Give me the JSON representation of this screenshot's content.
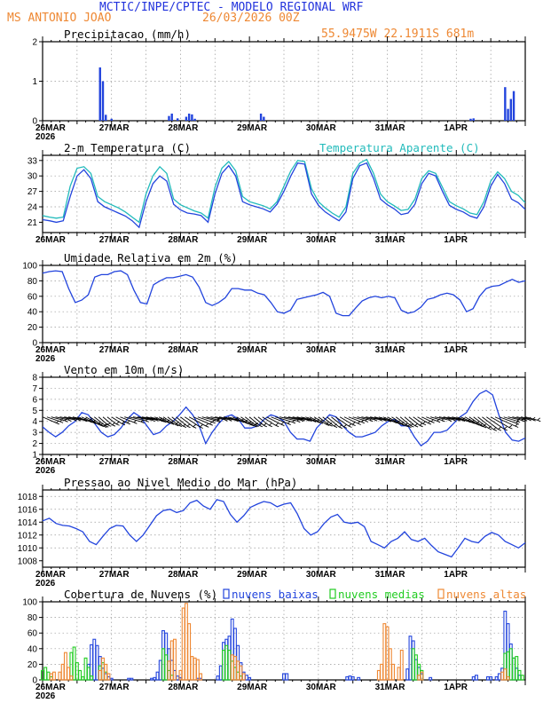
{
  "header": {
    "title": "MCTIC/INPE/CPTEC - MODELO REGIONAL WRF",
    "station": "MS ANTONIO JOAO",
    "run": "26/03/2026 00Z",
    "location": "55.9475W 22.1911S 681m"
  },
  "colors": {
    "title": "#2233dd",
    "orange": "#ee8833",
    "series": "#2244dd",
    "cyan": "#22bbbb",
    "green": "#22cc22",
    "grid": "#999999"
  },
  "time_axis": {
    "days": [
      "26MAR",
      "27MAR",
      "28MAR",
      "29MAR",
      "30MAR",
      "31MAR",
      "1APR"
    ],
    "year": "2026",
    "hours_total": 168,
    "step_hours": 3
  },
  "chart_data": [
    {
      "type": "bar",
      "title": "Precipitacao (mm/h)",
      "ylim": [
        0,
        2
      ],
      "yticks": [
        "0",
        "1",
        "2"
      ],
      "x_hours": [
        20,
        21,
        22,
        24,
        44,
        45,
        47,
        50,
        51,
        52,
        53,
        76,
        77,
        149,
        150,
        161,
        162,
        163,
        164
      ],
      "values": [
        1.35,
        1.0,
        0.15,
        0.05,
        0.12,
        0.18,
        0.06,
        0.1,
        0.18,
        0.16,
        0.05,
        0.18,
        0.1,
        0.05,
        0.06,
        0.85,
        0.3,
        0.55,
        0.75
      ]
    },
    {
      "type": "line",
      "title": "2-m Temperatura (C)",
      "title2": "Temperatura Aparente (C)",
      "ylim": [
        19,
        34
      ],
      "yticks": [
        "21",
        "24",
        "27",
        "30",
        "33"
      ],
      "series": [
        {
          "name": "2-m Temperatura (C)",
          "values": [
            21.5,
            21.3,
            21.0,
            21.3,
            26.0,
            30.0,
            31.2,
            29.5,
            25.0,
            24.0,
            23.4,
            22.8,
            22.2,
            21.3,
            20.0,
            25.0,
            28.5,
            30.0,
            29.0,
            24.5,
            23.4,
            22.8,
            22.6,
            22.3,
            21.0,
            26.5,
            30.5,
            32.0,
            30.0,
            25.0,
            24.4,
            24.0,
            23.6,
            23.0,
            24.5,
            27.0,
            30.0,
            32.5,
            32.3,
            26.5,
            24.3,
            23.0,
            22.1,
            21.3,
            23.0,
            29.5,
            32.0,
            32.5,
            29.5,
            25.5,
            24.4,
            23.6,
            22.5,
            22.8,
            24.5,
            28.5,
            30.5,
            30.0,
            27.0,
            24.3,
            23.5,
            23.0,
            22.2,
            21.8,
            24.0,
            28.0,
            30.3,
            28.5,
            25.5,
            24.8,
            23.5
          ]
        },
        {
          "name": "Temperatura Aparente (C)",
          "values": [
            22.3,
            22.0,
            21.8,
            22.0,
            28.0,
            31.5,
            31.8,
            30.5,
            26.0,
            25.0,
            24.4,
            23.8,
            23.0,
            22.0,
            21.0,
            26.5,
            30.0,
            31.8,
            30.5,
            25.5,
            24.4,
            23.8,
            23.2,
            22.8,
            21.8,
            27.8,
            31.5,
            32.8,
            31.0,
            26.0,
            25.0,
            24.6,
            24.2,
            23.6,
            25.0,
            28.0,
            31.0,
            33.0,
            32.8,
            27.5,
            25.0,
            23.8,
            22.8,
            22.0,
            24.0,
            30.5,
            32.5,
            33.2,
            30.5,
            26.5,
            25.0,
            24.2,
            23.3,
            23.5,
            25.5,
            29.5,
            31.0,
            30.5,
            27.8,
            25.0,
            24.2,
            23.6,
            22.8,
            22.5,
            25.0,
            29.0,
            30.8,
            29.5,
            27.0,
            26.2,
            24.8
          ]
        }
      ]
    },
    {
      "type": "line",
      "title": "Umidade Relativa em 2m (%)",
      "ylim": [
        0,
        100
      ],
      "yticks": [
        "0",
        "20",
        "40",
        "60",
        "80",
        "100"
      ],
      "series": [
        {
          "name": "Umidade Relativa em 2m (%)",
          "values": [
            90,
            92,
            93,
            92,
            70,
            52,
            55,
            62,
            85,
            88,
            88,
            92,
            93,
            88,
            68,
            52,
            50,
            75,
            80,
            84,
            84,
            86,
            88,
            85,
            72,
            52,
            48,
            52,
            58,
            70,
            70,
            68,
            68,
            64,
            62,
            52,
            40,
            38,
            42,
            56,
            58,
            60,
            62,
            65,
            60,
            38,
            35,
            35,
            45,
            54,
            58,
            60,
            58,
            60,
            58,
            42,
            38,
            40,
            46,
            56,
            58,
            62,
            64,
            62,
            55,
            40,
            44,
            60,
            70,
            73,
            74,
            78,
            82,
            78,
            80
          ]
        }
      ]
    },
    {
      "type": "line",
      "title": "Vento em 10m (m/s)",
      "ylim": [
        1,
        8
      ],
      "yticks": [
        "1",
        "2",
        "3",
        "4",
        "5",
        "6",
        "7",
        "8"
      ],
      "series": [
        {
          "name": "Vento em 10m (m/s)",
          "values": [
            3.5,
            3.0,
            2.6,
            3.0,
            3.6,
            4.0,
            4.8,
            4.6,
            3.8,
            3.0,
            2.6,
            2.8,
            3.4,
            4.2,
            4.8,
            4.4,
            3.6,
            2.8,
            3.0,
            3.6,
            4.0,
            4.6,
            5.3,
            4.6,
            3.6,
            2.0,
            3.0,
            3.8,
            4.4,
            4.6,
            4.2,
            3.4,
            3.4,
            3.6,
            4.2,
            4.6,
            4.4,
            4.0,
            3.0,
            2.4,
            2.4,
            2.2,
            3.4,
            4.0,
            4.6,
            4.4,
            3.6,
            3.0,
            2.6,
            2.6,
            2.8,
            3.0,
            3.6,
            4.0,
            4.2,
            3.6,
            3.6,
            2.6,
            1.8,
            2.2,
            3.0,
            3.0,
            3.2,
            3.8,
            4.4,
            4.8,
            5.8,
            6.5,
            6.8,
            6.4,
            4.5,
            3.0,
            2.3,
            2.2,
            2.5
          ]
        }
      ]
    },
    {
      "type": "line",
      "title": "Pressao ao Nivel Medio do Mar (hPa)",
      "ylim": [
        1007,
        1019
      ],
      "yticks": [
        "1008",
        "1010",
        "1012",
        "1014",
        "1016",
        "1018"
      ],
      "series": [
        {
          "name": "Pressao ao Nivel Medio do Mar (hPa)",
          "values": [
            1014.2,
            1014.6,
            1013.8,
            1013.5,
            1013.4,
            1013.0,
            1012.5,
            1011.0,
            1010.5,
            1011.8,
            1013.0,
            1013.5,
            1013.4,
            1012.0,
            1011.0,
            1012.0,
            1013.5,
            1015.0,
            1015.8,
            1016.0,
            1015.5,
            1015.8,
            1017.0,
            1017.4,
            1016.5,
            1016.0,
            1017.5,
            1017.2,
            1015.2,
            1014.0,
            1015.0,
            1016.3,
            1016.8,
            1017.2,
            1017.0,
            1016.4,
            1016.8,
            1017.0,
            1015.3,
            1013.0,
            1012.0,
            1012.5,
            1013.8,
            1014.8,
            1015.2,
            1014.0,
            1013.8,
            1014.0,
            1013.3,
            1011.0,
            1010.5,
            1010.0,
            1011.0,
            1011.5,
            1012.5,
            1011.3,
            1011.0,
            1011.5,
            1010.4,
            1009.4,
            1009.0,
            1008.6,
            1010.0,
            1011.5,
            1011.0,
            1010.8,
            1011.8,
            1012.4,
            1012.0,
            1011.0,
            1010.5,
            1010.0,
            1010.8
          ]
        }
      ]
    },
    {
      "type": "bar",
      "title": "Cobertura de Nuvens (%)",
      "ylim": [
        0,
        100
      ],
      "yticks": [
        "0",
        "20",
        "40",
        "60",
        "80",
        "100"
      ],
      "legend": [
        "nuvens baixas",
        "nuvens medias",
        "nuvens altas"
      ],
      "series": [
        {
          "name": "nuvens baixas",
          "points": [
            [
              16,
              20
            ],
            [
              17,
              45
            ],
            [
              18,
              52
            ],
            [
              19,
              44
            ],
            [
              20,
              30
            ],
            [
              21,
              15
            ],
            [
              22,
              8
            ],
            [
              23,
              4
            ],
            [
              24,
              2
            ],
            [
              30,
              2
            ],
            [
              31,
              2
            ],
            [
              38,
              2
            ],
            [
              39,
              3
            ],
            [
              40,
              10
            ],
            [
              41,
              25
            ],
            [
              42,
              63
            ],
            [
              43,
              60
            ],
            [
              44,
              40
            ],
            [
              45,
              25
            ],
            [
              46,
              12
            ],
            [
              47,
              5
            ],
            [
              48,
              3
            ],
            [
              54,
              2
            ],
            [
              55,
              2
            ],
            [
              61,
              5
            ],
            [
              62,
              18
            ],
            [
              63,
              48
            ],
            [
              64,
              52
            ],
            [
              65,
              56
            ],
            [
              66,
              78
            ],
            [
              67,
              66
            ],
            [
              68,
              44
            ],
            [
              69,
              22
            ],
            [
              70,
              10
            ],
            [
              71,
              6
            ],
            [
              72,
              3
            ],
            [
              84,
              8
            ],
            [
              85,
              8
            ],
            [
              106,
              4
            ],
            [
              107,
              5
            ],
            [
              108,
              4
            ],
            [
              110,
              3
            ],
            [
              127,
              14
            ],
            [
              128,
              56
            ],
            [
              129,
              50
            ],
            [
              130,
              26
            ],
            [
              131,
              16
            ],
            [
              132,
              8
            ],
            [
              135,
              3
            ],
            [
              150,
              4
            ],
            [
              151,
              6
            ],
            [
              155,
              4
            ],
            [
              156,
              4
            ],
            [
              158,
              4
            ],
            [
              159,
              8
            ],
            [
              160,
              15
            ],
            [
              161,
              88
            ],
            [
              162,
              72
            ],
            [
              163,
              46
            ],
            [
              164,
              28
            ],
            [
              165,
              15
            ],
            [
              166,
              6
            ]
          ]
        },
        {
          "name": "nuvens medias",
          "points": [
            [
              0,
              12
            ],
            [
              1,
              16
            ],
            [
              2,
              10
            ],
            [
              3,
              4
            ],
            [
              10,
              35
            ],
            [
              11,
              42
            ],
            [
              12,
              22
            ],
            [
              13,
              12
            ],
            [
              14,
              4
            ],
            [
              15,
              28
            ],
            [
              16,
              16
            ],
            [
              17,
              5
            ],
            [
              20,
              18
            ],
            [
              21,
              22
            ],
            [
              22,
              10
            ],
            [
              42,
              40
            ],
            [
              43,
              32
            ],
            [
              44,
              12
            ],
            [
              45,
              6
            ],
            [
              63,
              38
            ],
            [
              64,
              44
            ],
            [
              65,
              38
            ],
            [
              66,
              24
            ],
            [
              67,
              16
            ],
            [
              68,
              10
            ],
            [
              69,
              5
            ],
            [
              129,
              40
            ],
            [
              130,
              32
            ],
            [
              131,
              20
            ],
            [
              132,
              12
            ],
            [
              161,
              34
            ],
            [
              162,
              36
            ],
            [
              163,
              40
            ],
            [
              164,
              28
            ],
            [
              165,
              30
            ],
            [
              166,
              12
            ],
            [
              167,
              6
            ]
          ]
        },
        {
          "name": "nuvens altas",
          "points": [
            [
              3,
              8
            ],
            [
              4,
              10
            ],
            [
              6,
              10
            ],
            [
              7,
              20
            ],
            [
              8,
              35
            ],
            [
              9,
              16
            ],
            [
              10,
              5
            ],
            [
              20,
              12
            ],
            [
              21,
              28
            ],
            [
              22,
              20
            ],
            [
              23,
              8
            ],
            [
              44,
              24
            ],
            [
              45,
              50
            ],
            [
              46,
              52
            ],
            [
              48,
              12
            ],
            [
              49,
              92
            ],
            [
              50,
              98
            ],
            [
              51,
              72
            ],
            [
              52,
              30
            ],
            [
              53,
              28
            ],
            [
              54,
              26
            ],
            [
              55,
              8
            ],
            [
              66,
              32
            ],
            [
              67,
              30
            ],
            [
              68,
              24
            ],
            [
              69,
              18
            ],
            [
              70,
              8
            ],
            [
              117,
              12
            ],
            [
              118,
              20
            ],
            [
              119,
              72
            ],
            [
              120,
              68
            ],
            [
              121,
              40
            ],
            [
              122,
              20
            ],
            [
              124,
              16
            ],
            [
              125,
              38
            ],
            [
              131,
              6
            ],
            [
              132,
              10
            ],
            [
              160,
              10
            ],
            [
              161,
              14
            ],
            [
              162,
              4
            ]
          ]
        }
      ]
    }
  ]
}
